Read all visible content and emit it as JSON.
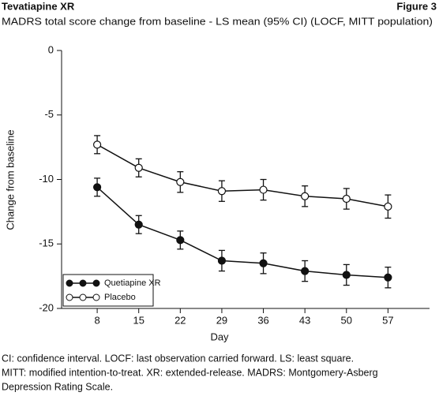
{
  "chart_data": {
    "type": "line",
    "header": "Tevatiapine XR",
    "figure_label": "Figure 3",
    "title": "MADRS total score change from baseline - LS mean (95% CI) (LOCF, MITT population)",
    "xlabel": "Day",
    "ylabel": "Change from baseline",
    "x": [
      8,
      15,
      22,
      29,
      36,
      43,
      50,
      57
    ],
    "xlim": [
      2,
      64
    ],
    "xticks": [
      8,
      15,
      22,
      29,
      36,
      43,
      50,
      57
    ],
    "ylim": [
      -20,
      0
    ],
    "yticks": [
      0,
      -5,
      -10,
      -15,
      -20
    ],
    "legend_position": "lower left",
    "series": [
      {
        "name": "Quetiapine XR",
        "color": "#111111",
        "marker": "filled",
        "values": [
          -10.6,
          -13.5,
          -14.7,
          -16.3,
          -16.5,
          -17.1,
          -17.4,
          -17.6
        ],
        "errors": [
          0.7,
          0.7,
          0.7,
          0.8,
          0.8,
          0.8,
          0.8,
          0.8
        ]
      },
      {
        "name": "Placebo",
        "color": "#111111",
        "marker": "open",
        "values": [
          -7.3,
          -9.1,
          -10.2,
          -10.9,
          -10.8,
          -11.3,
          -11.5,
          -12.1
        ],
        "errors": [
          0.7,
          0.7,
          0.8,
          0.8,
          0.8,
          0.8,
          0.8,
          0.9
        ]
      }
    ],
    "notes": [
      "CI: confidence interval. LOCF: last observation carried forward. LS: least square.",
      "MITT: modified intention-to-treat. XR: extended-release. MADRS: Montgomery-Asberg",
      "Depression Rating Scale."
    ]
  }
}
